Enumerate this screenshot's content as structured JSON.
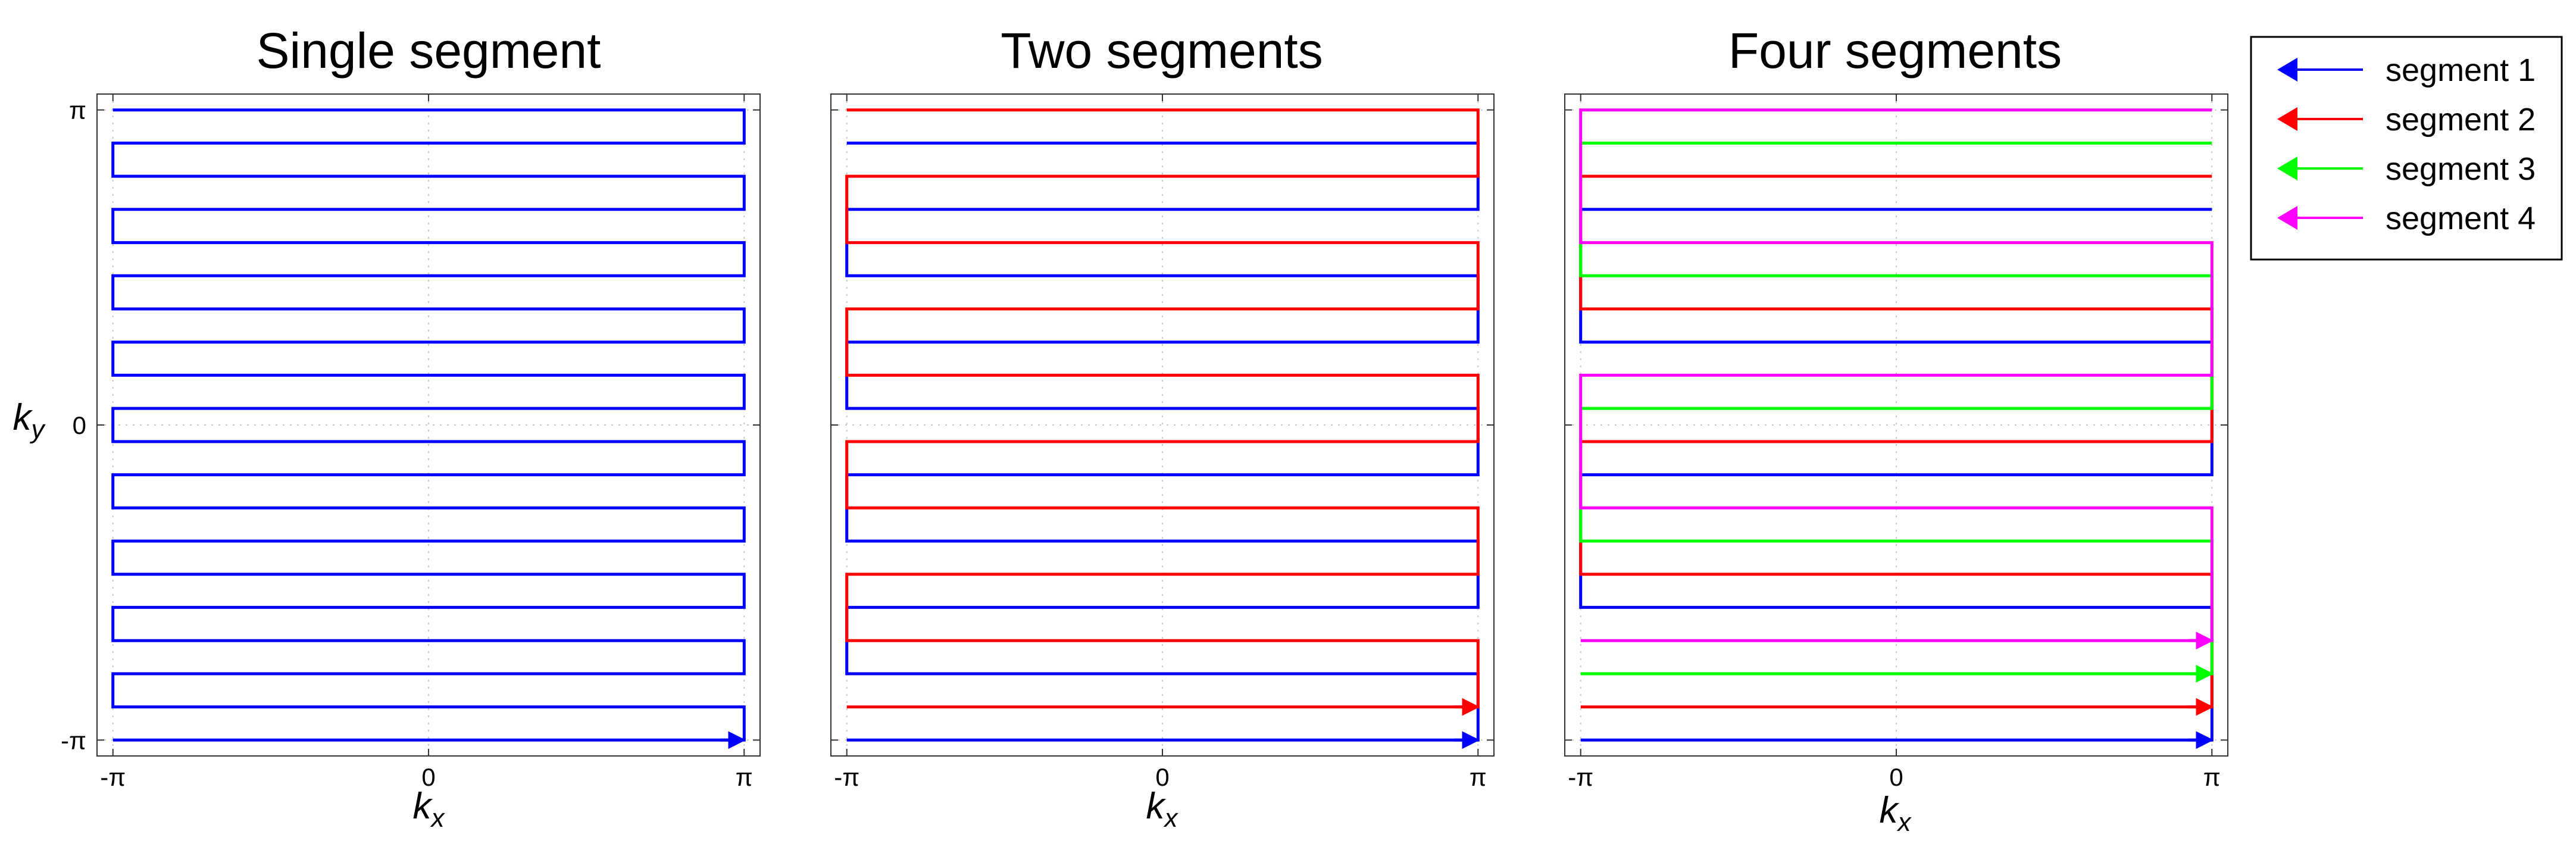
{
  "chart_data": [
    {
      "type": "line",
      "title": "Single segment",
      "xlabel": "k",
      "xlabel_sub": "x",
      "ylabel": "k",
      "ylabel_sub": "y",
      "xlim": [
        -3.3,
        3.3
      ],
      "ylim": [
        -3.3,
        3.3
      ],
      "xticks": [
        {
          "value": -3.1416,
          "label": "-π"
        },
        {
          "value": 0,
          "label": "0"
        },
        {
          "value": 3.1416,
          "label": "π"
        }
      ],
      "yticks": [
        {
          "value": -3.1416,
          "label": "-π"
        },
        {
          "value": 0,
          "label": "0"
        },
        {
          "value": 3.1416,
          "label": "π"
        }
      ],
      "grid": true,
      "num_lines": 20,
      "segments": [
        {
          "name": "segment 1",
          "color": "#0000ff",
          "lines": [
            0,
            1,
            2,
            3,
            4,
            5,
            6,
            7,
            8,
            9,
            10,
            11,
            12,
            13,
            14,
            15,
            16,
            17,
            18,
            19
          ]
        }
      ]
    },
    {
      "type": "line",
      "title": "Two segments",
      "xlabel": "k",
      "xlabel_sub": "x",
      "xlim": [
        -3.3,
        3.3
      ],
      "ylim": [
        -3.3,
        3.3
      ],
      "xticks": [
        {
          "value": -3.1416,
          "label": "-π"
        },
        {
          "value": 0,
          "label": "0"
        },
        {
          "value": 3.1416,
          "label": "π"
        }
      ],
      "yticks": [
        {
          "value": -3.1416,
          "label": ""
        },
        {
          "value": 0,
          "label": ""
        },
        {
          "value": 3.1416,
          "label": ""
        }
      ],
      "grid": true,
      "num_lines": 20,
      "segments": [
        {
          "name": "segment 1",
          "color": "#0000ff",
          "lines": [
            0,
            2,
            4,
            6,
            8,
            10,
            12,
            14,
            16,
            18
          ]
        },
        {
          "name": "segment 2",
          "color": "#ff0000",
          "lines": [
            1,
            3,
            5,
            7,
            9,
            11,
            13,
            15,
            17,
            19
          ]
        }
      ]
    },
    {
      "type": "line",
      "title": "Four segments",
      "xlabel": "k",
      "xlabel_sub": "x",
      "xlim": [
        -3.3,
        3.3
      ],
      "ylim": [
        -3.3,
        3.3
      ],
      "xticks": [
        {
          "value": -3.1416,
          "label": "-π"
        },
        {
          "value": 0,
          "label": "0"
        },
        {
          "value": 3.1416,
          "label": "π"
        }
      ],
      "yticks": [
        {
          "value": -3.1416,
          "label": ""
        },
        {
          "value": 0,
          "label": ""
        },
        {
          "value": 3.1416,
          "label": ""
        }
      ],
      "grid": true,
      "num_lines": 20,
      "segments": [
        {
          "name": "segment 1",
          "color": "#0000ff",
          "lines": [
            0,
            4,
            8,
            12,
            16
          ]
        },
        {
          "name": "segment 2",
          "color": "#ff0000",
          "lines": [
            1,
            5,
            9,
            13,
            17
          ]
        },
        {
          "name": "segment 3",
          "color": "#00ff00",
          "lines": [
            2,
            6,
            10,
            14,
            18
          ]
        },
        {
          "name": "segment 4",
          "color": "#ff00ff",
          "lines": [
            3,
            7,
            11,
            15,
            19
          ]
        }
      ]
    }
  ],
  "legend": {
    "placement": "right",
    "entries": [
      {
        "label": "segment 1",
        "color": "#0000ff"
      },
      {
        "label": "segment 2",
        "color": "#ff0000"
      },
      {
        "label": "segment 3",
        "color": "#00ff00"
      },
      {
        "label": "segment 4",
        "color": "#ff00ff"
      }
    ]
  }
}
